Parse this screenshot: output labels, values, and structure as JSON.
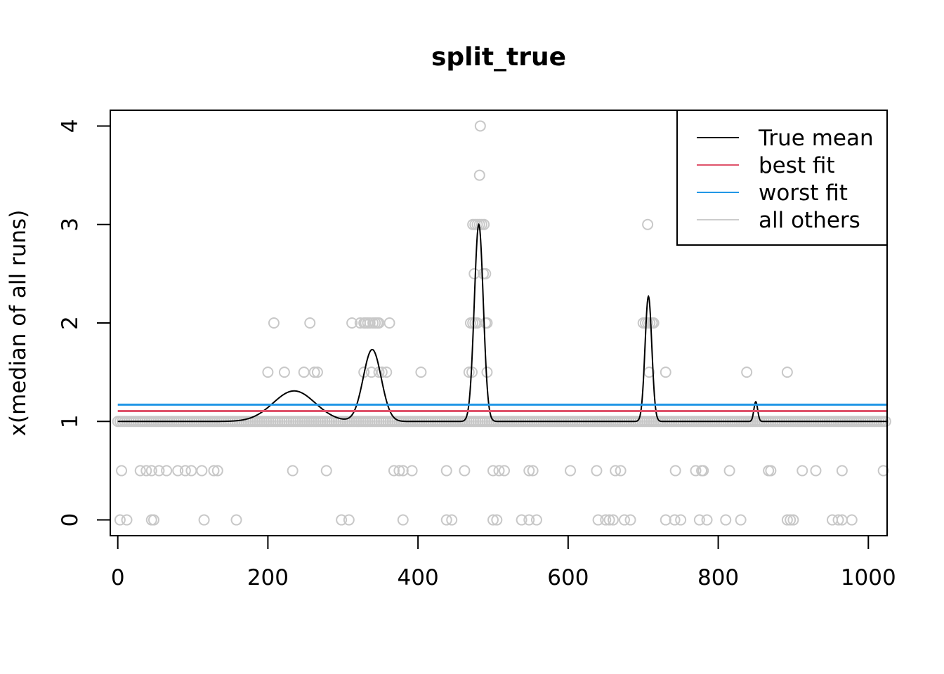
{
  "chart_data": {
    "type": "scatter",
    "title": "split_true",
    "xlabel": "",
    "ylabel": "x(median of all runs)",
    "xlim": [
      -10,
      1025
    ],
    "ylim": [
      -0.16,
      4.16
    ],
    "xticks": [
      0,
      200,
      400,
      600,
      800,
      1000
    ],
    "yticks": [
      0,
      1,
      2,
      3,
      4
    ],
    "xtick_labels": [
      "0",
      "200",
      "400",
      "600",
      "800",
      "1000"
    ],
    "ytick_labels": [
      "0",
      "1",
      "2",
      "3",
      "4"
    ],
    "grid": false,
    "legend_position": "top-right",
    "legend": [
      {
        "label": "True mean",
        "color": "#000000"
      },
      {
        "label": "best fit",
        "color": "#DF536B"
      },
      {
        "label": "worst fit",
        "color": "#2297E6"
      },
      {
        "label": "all others",
        "color": "#CCCCCC"
      }
    ],
    "point_color": "#C8C8C8",
    "points": {
      "y0": [
        3,
        12,
        45,
        48,
        115,
        158,
        298,
        308,
        380,
        438,
        445,
        500,
        505,
        538,
        548,
        558,
        640,
        650,
        655,
        660,
        675,
        683,
        730,
        742,
        750,
        775,
        785,
        810,
        830,
        892,
        896,
        900,
        952,
        960,
        965,
        978
      ],
      "y0_5": [
        5,
        30,
        38,
        45,
        55,
        65,
        80,
        90,
        98,
        112,
        128,
        133,
        233,
        278,
        368,
        375,
        380,
        392,
        438,
        462,
        500,
        508,
        515,
        548,
        553,
        603,
        638,
        663,
        670,
        743,
        770,
        778,
        780,
        815,
        867,
        870,
        912,
        930,
        965,
        1020
      ],
      "y1_5": [
        200,
        222,
        248,
        262,
        266,
        328,
        338,
        348,
        352,
        358,
        404,
        468,
        472,
        492,
        708,
        730,
        838,
        892
      ],
      "y2": [
        208,
        256,
        312,
        323,
        328,
        330,
        333,
        336,
        340,
        343,
        346,
        348,
        362,
        470,
        473,
        476,
        479,
        490,
        492,
        700,
        703,
        706,
        709,
        712,
        714
      ],
      "y2_5": [
        475,
        487,
        490
      ],
      "y3": [
        473,
        476,
        479,
        482,
        485,
        488,
        706
      ],
      "y3_5": [
        482
      ],
      "y4": [
        483
      ]
    },
    "series": [
      {
        "name": "True mean",
        "color": "#000000",
        "baseline": 1.0,
        "bumps": [
          {
            "center": 235,
            "height": 0.31,
            "sd": 28
          },
          {
            "center": 339,
            "height": 0.73,
            "sd": 12
          },
          {
            "center": 481,
            "height": 2.0,
            "sd": 6
          },
          {
            "center": 707,
            "height": 1.27,
            "sd": 4.5
          },
          {
            "center": 850,
            "height": 0.2,
            "sd": 2.5
          }
        ],
        "x_range": [
          0,
          1024
        ]
      },
      {
        "name": "best fit",
        "color": "#DF536B",
        "value": 1.105,
        "x_range": [
          0,
          1024
        ]
      },
      {
        "name": "worst fit",
        "color": "#2297E6",
        "value": 1.17,
        "x_range": [
          0,
          1024
        ]
      }
    ]
  }
}
